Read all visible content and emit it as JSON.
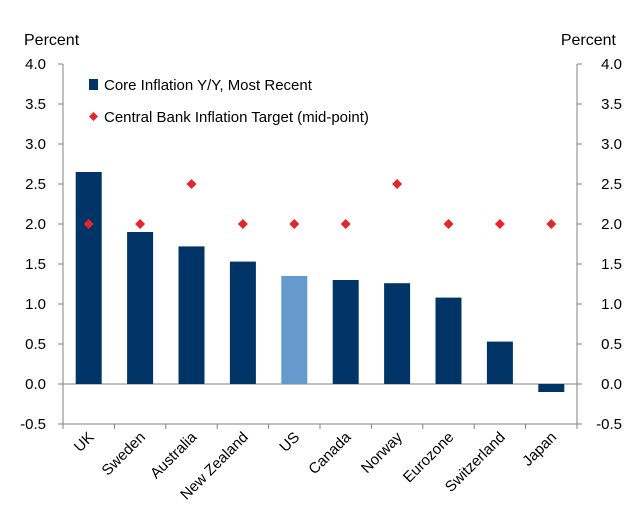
{
  "chart_data": {
    "type": "bar",
    "title": "",
    "ylabel_left": "Percent",
    "ylabel_right": "Percent",
    "ylim": [
      -0.5,
      4.0
    ],
    "yticks": [
      "4.0",
      "3.5",
      "3.0",
      "2.5",
      "2.0",
      "1.5",
      "1.0",
      "0.5",
      "0.0",
      "-0.5"
    ],
    "categories": [
      "UK",
      "Sweden",
      "Australia",
      "New Zealand",
      "US",
      "Canada",
      "Norway",
      "Eurozone",
      "Switzerland",
      "Japan"
    ],
    "series": [
      {
        "name": "Core Inflation Y/Y, Most Recent",
        "type": "bar",
        "color": "#003466",
        "highlight_color": "#6699cc",
        "highlight_category": "US",
        "values": [
          2.65,
          1.9,
          1.72,
          1.53,
          1.35,
          1.3,
          1.26,
          1.08,
          0.53,
          -0.1
        ]
      },
      {
        "name": "Central Bank Inflation Target (mid-point)",
        "type": "marker",
        "marker": "diamond",
        "color": "#e3262c",
        "values": [
          2.0,
          2.0,
          2.5,
          2.0,
          2.0,
          2.0,
          2.5,
          2.0,
          2.0,
          2.0
        ]
      }
    ],
    "legend_position": "top-left"
  }
}
